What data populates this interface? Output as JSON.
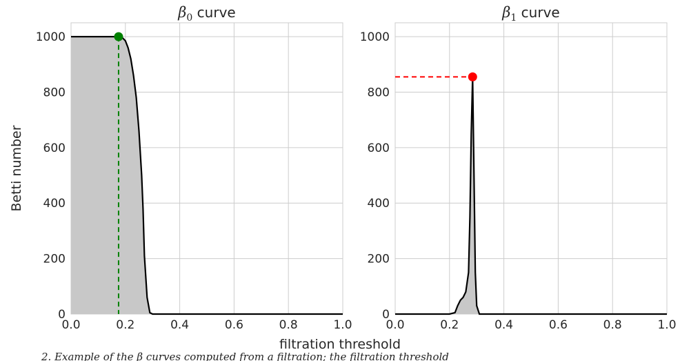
{
  "chart_data": [
    {
      "type": "area",
      "title_symbol": "β",
      "title_subscript": "0",
      "title_suffix": " curve",
      "ylabel": "Betti number",
      "xlim": [
        0.0,
        1.0
      ],
      "ylim": [
        0,
        1050
      ],
      "x_ticks": [
        0.0,
        0.2,
        0.4,
        0.6,
        0.8,
        1.0
      ],
      "x_tick_labels": [
        "0.0",
        "0.2",
        "0.4",
        "0.6",
        "0.8",
        "1.0"
      ],
      "y_ticks": [
        0,
        200,
        400,
        600,
        800,
        1000
      ],
      "y_tick_labels": [
        "0",
        "200",
        "400",
        "600",
        "800",
        "1000"
      ],
      "grid": true,
      "series": [
        {
          "x": [
            0.0,
            0.17,
            0.19,
            0.2,
            0.21,
            0.22,
            0.23,
            0.24,
            0.25,
            0.26,
            0.265,
            0.27,
            0.28,
            0.29,
            0.3,
            1.0
          ],
          "y": [
            1000,
            1000,
            995,
            985,
            960,
            920,
            860,
            780,
            660,
            500,
            380,
            210,
            60,
            5,
            0,
            0
          ]
        }
      ],
      "marker": {
        "x": 0.175,
        "y": 1000,
        "color": "#008000",
        "guide": "vertical"
      }
    },
    {
      "type": "area",
      "title_symbol": "β",
      "title_subscript": "1",
      "title_suffix": " curve",
      "xlim": [
        0.0,
        1.0
      ],
      "ylim": [
        0,
        1050
      ],
      "x_ticks": [
        0.0,
        0.2,
        0.4,
        0.6,
        0.8,
        1.0
      ],
      "x_tick_labels": [
        "0.0",
        "0.2",
        "0.4",
        "0.6",
        "0.8",
        "1.0"
      ],
      "y_ticks": [
        0,
        200,
        400,
        600,
        800,
        1000
      ],
      "y_tick_labels": [
        "0",
        "200",
        "400",
        "600",
        "800",
        "1000"
      ],
      "grid": true,
      "series": [
        {
          "x": [
            0.0,
            0.2,
            0.22,
            0.23,
            0.24,
            0.25,
            0.26,
            0.27,
            0.275,
            0.28,
            0.285,
            0.29,
            0.295,
            0.3,
            0.31,
            1.0
          ],
          "y": [
            0,
            0,
            5,
            30,
            50,
            60,
            80,
            150,
            350,
            650,
            855,
            500,
            150,
            30,
            0,
            0
          ]
        }
      ],
      "marker": {
        "x": 0.285,
        "y": 855,
        "color": "#ff0000",
        "guide": "horizontal"
      }
    }
  ],
  "shared_xlabel": "filtration threshold",
  "caption": "2. Example of the β curves computed from a filtration; the filtration threshold"
}
